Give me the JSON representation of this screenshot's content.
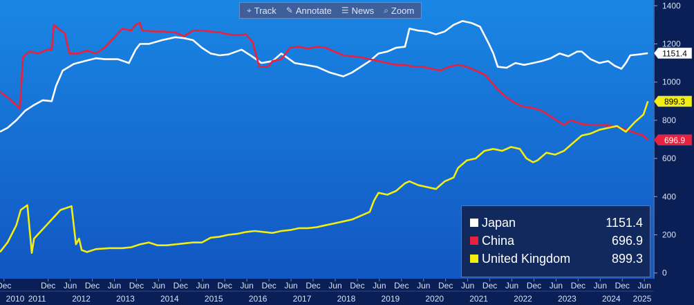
{
  "toolbar": {
    "track_label": "Track",
    "annotate_label": "Annotate",
    "news_label": "News",
    "zoom_label": "Zoom"
  },
  "colors": {
    "background": "#0b1f57",
    "plot_top": "#1a87e4",
    "plot_bottom": "#1256c2",
    "japan": "#ffffff",
    "china": "#e8213f",
    "united_kingdom": "#f2ee12"
  },
  "icons": {
    "track": "crosshair-icon",
    "annotate": "pencil-icon",
    "news": "news-icon",
    "zoom": "magnifier-icon"
  },
  "legend": [
    {
      "name": "Japan",
      "value": "1151.4"
    },
    {
      "name": "China",
      "value": "696.9"
    },
    {
      "name": "United Kingdom",
      "value": "899.3"
    }
  ],
  "chart_data": {
    "type": "line",
    "title": "",
    "xlabel": "",
    "ylabel": "",
    "xlim": [
      2010.83,
      2025.62
    ],
    "ylim": [
      -30,
      1430
    ],
    "yticks": [
      0,
      200,
      400,
      600,
      800,
      1000,
      1200,
      1400
    ],
    "ytick_labels": [
      "0",
      "200",
      "400",
      "600",
      "800",
      "1000",
      "1200",
      "1400"
    ],
    "grid": false,
    "legend_position": "bottom-right",
    "x_month_labels": [
      {
        "x": 2010.92,
        "label": "Dec"
      },
      {
        "x": 2011.92,
        "label": "Dec"
      },
      {
        "x": 2012.42,
        "label": "Jun"
      },
      {
        "x": 2012.92,
        "label": "Dec"
      },
      {
        "x": 2013.42,
        "label": "Jun"
      },
      {
        "x": 2013.92,
        "label": "Dec"
      },
      {
        "x": 2014.42,
        "label": "Jun"
      },
      {
        "x": 2014.92,
        "label": "Dec"
      },
      {
        "x": 2015.42,
        "label": "Jun"
      },
      {
        "x": 2015.92,
        "label": "Dec"
      },
      {
        "x": 2016.42,
        "label": "Jun"
      },
      {
        "x": 2016.92,
        "label": "Dec"
      },
      {
        "x": 2017.42,
        "label": "Jun"
      },
      {
        "x": 2017.92,
        "label": "Dec"
      },
      {
        "x": 2018.42,
        "label": "Jun"
      },
      {
        "x": 2018.92,
        "label": "Dec"
      },
      {
        "x": 2019.42,
        "label": "Jun"
      },
      {
        "x": 2019.92,
        "label": "Dec"
      },
      {
        "x": 2020.42,
        "label": "Jun"
      },
      {
        "x": 2020.92,
        "label": "Dec"
      },
      {
        "x": 2021.42,
        "label": "Jun"
      },
      {
        "x": 2021.92,
        "label": "Dec"
      },
      {
        "x": 2022.42,
        "label": "Jun"
      },
      {
        "x": 2022.92,
        "label": "Dec"
      },
      {
        "x": 2023.42,
        "label": "Jun"
      },
      {
        "x": 2023.92,
        "label": "Dec"
      },
      {
        "x": 2024.42,
        "label": "Jun"
      },
      {
        "x": 2024.92,
        "label": "Dec"
      },
      {
        "x": 2025.42,
        "label": "Jun"
      }
    ],
    "x_year_labels": [
      {
        "x": 2010.92,
        "label": "2010"
      },
      {
        "x": 2011.67,
        "label": "2011"
      },
      {
        "x": 2012.67,
        "label": "2012"
      },
      {
        "x": 2013.67,
        "label": "2013"
      },
      {
        "x": 2014.67,
        "label": "2014"
      },
      {
        "x": 2015.67,
        "label": "2015"
      },
      {
        "x": 2016.67,
        "label": "2016"
      },
      {
        "x": 2017.67,
        "label": "2017"
      },
      {
        "x": 2018.67,
        "label": "2018"
      },
      {
        "x": 2019.67,
        "label": "2019"
      },
      {
        "x": 2020.67,
        "label": "2020"
      },
      {
        "x": 2021.67,
        "label": "2021"
      },
      {
        "x": 2022.67,
        "label": "2022"
      },
      {
        "x": 2023.67,
        "label": "2023"
      },
      {
        "x": 2024.67,
        "label": "2024"
      },
      {
        "x": 2025.37,
        "label": "2025"
      }
    ],
    "series": [
      {
        "name": "Japan",
        "color": "#ffffff",
        "last_label": "1151.4",
        "points": [
          [
            2010.83,
            740
          ],
          [
            2011.0,
            760
          ],
          [
            2011.2,
            800
          ],
          [
            2011.4,
            850
          ],
          [
            2011.6,
            880
          ],
          [
            2011.8,
            905
          ],
          [
            2012.0,
            900
          ],
          [
            2012.1,
            980
          ],
          [
            2012.25,
            1060
          ],
          [
            2012.5,
            1095
          ],
          [
            2012.75,
            1110
          ],
          [
            2013.0,
            1125
          ],
          [
            2013.2,
            1120
          ],
          [
            2013.4,
            1120
          ],
          [
            2013.5,
            1120
          ],
          [
            2013.75,
            1100
          ],
          [
            2013.9,
            1170
          ],
          [
            2014.0,
            1200
          ],
          [
            2014.2,
            1200
          ],
          [
            2014.5,
            1220
          ],
          [
            2014.8,
            1235
          ],
          [
            2015.0,
            1230
          ],
          [
            2015.2,
            1220
          ],
          [
            2015.4,
            1180
          ],
          [
            2015.6,
            1150
          ],
          [
            2015.8,
            1140
          ],
          [
            2016.0,
            1145
          ],
          [
            2016.3,
            1170
          ],
          [
            2016.5,
            1140
          ],
          [
            2016.75,
            1100
          ],
          [
            2017.0,
            1110
          ],
          [
            2017.2,
            1150
          ],
          [
            2017.5,
            1100
          ],
          [
            2017.75,
            1090
          ],
          [
            2018.0,
            1080
          ],
          [
            2018.3,
            1050
          ],
          [
            2018.6,
            1030
          ],
          [
            2018.8,
            1050
          ],
          [
            2019.0,
            1080
          ],
          [
            2019.2,
            1110
          ],
          [
            2019.4,
            1150
          ],
          [
            2019.6,
            1160
          ],
          [
            2019.8,
            1180
          ],
          [
            2020.0,
            1185
          ],
          [
            2020.1,
            1280
          ],
          [
            2020.3,
            1270
          ],
          [
            2020.5,
            1265
          ],
          [
            2020.7,
            1250
          ],
          [
            2020.9,
            1265
          ],
          [
            2021.1,
            1300
          ],
          [
            2021.3,
            1320
          ],
          [
            2021.5,
            1310
          ],
          [
            2021.7,
            1290
          ],
          [
            2021.9,
            1200
          ],
          [
            2022.0,
            1150
          ],
          [
            2022.1,
            1080
          ],
          [
            2022.3,
            1075
          ],
          [
            2022.5,
            1100
          ],
          [
            2022.7,
            1090
          ],
          [
            2022.9,
            1100
          ],
          [
            2023.1,
            1110
          ],
          [
            2023.3,
            1125
          ],
          [
            2023.5,
            1150
          ],
          [
            2023.7,
            1135
          ],
          [
            2023.9,
            1160
          ],
          [
            2024.0,
            1160
          ],
          [
            2024.2,
            1120
          ],
          [
            2024.4,
            1100
          ],
          [
            2024.6,
            1110
          ],
          [
            2024.75,
            1085
          ],
          [
            2024.9,
            1070
          ],
          [
            2025.0,
            1100
          ],
          [
            2025.1,
            1140
          ],
          [
            2025.3,
            1145
          ],
          [
            2025.5,
            1151.4
          ]
        ]
      },
      {
        "name": "China",
        "color": "#e8213f",
        "last_label": "696.9",
        "points": [
          [
            2010.83,
            950
          ],
          [
            2011.0,
            920
          ],
          [
            2011.2,
            880
          ],
          [
            2011.28,
            860
          ],
          [
            2011.35,
            1130
          ],
          [
            2011.5,
            1160
          ],
          [
            2011.7,
            1150
          ],
          [
            2011.9,
            1170
          ],
          [
            2012.0,
            1170
          ],
          [
            2012.05,
            1300
          ],
          [
            2012.15,
            1280
          ],
          [
            2012.3,
            1255
          ],
          [
            2012.4,
            1150
          ],
          [
            2012.6,
            1150
          ],
          [
            2012.8,
            1165
          ],
          [
            2013.0,
            1150
          ],
          [
            2013.2,
            1180
          ],
          [
            2013.4,
            1230
          ],
          [
            2013.6,
            1280
          ],
          [
            2013.8,
            1270
          ],
          [
            2013.9,
            1300
          ],
          [
            2014.0,
            1310
          ],
          [
            2014.05,
            1270
          ],
          [
            2014.3,
            1265
          ],
          [
            2014.5,
            1265
          ],
          [
            2014.8,
            1260
          ],
          [
            2015.0,
            1240
          ],
          [
            2015.2,
            1270
          ],
          [
            2015.4,
            1270
          ],
          [
            2015.6,
            1265
          ],
          [
            2015.8,
            1260
          ],
          [
            2016.0,
            1250
          ],
          [
            2016.2,
            1245
          ],
          [
            2016.4,
            1250
          ],
          [
            2016.55,
            1210
          ],
          [
            2016.7,
            1080
          ],
          [
            2016.9,
            1080
          ],
          [
            2017.0,
            1110
          ],
          [
            2017.2,
            1120
          ],
          [
            2017.4,
            1180
          ],
          [
            2017.6,
            1185
          ],
          [
            2017.8,
            1175
          ],
          [
            2018.0,
            1185
          ],
          [
            2018.2,
            1180
          ],
          [
            2018.4,
            1160
          ],
          [
            2018.6,
            1140
          ],
          [
            2018.8,
            1135
          ],
          [
            2019.0,
            1130
          ],
          [
            2019.2,
            1120
          ],
          [
            2019.4,
            1110
          ],
          [
            2019.6,
            1100
          ],
          [
            2019.8,
            1090
          ],
          [
            2020.0,
            1090
          ],
          [
            2020.2,
            1080
          ],
          [
            2020.4,
            1080
          ],
          [
            2020.6,
            1070
          ],
          [
            2020.8,
            1060
          ],
          [
            2021.0,
            1080
          ],
          [
            2021.2,
            1090
          ],
          [
            2021.4,
            1080
          ],
          [
            2021.6,
            1060
          ],
          [
            2021.8,
            1040
          ],
          [
            2022.0,
            990
          ],
          [
            2022.1,
            960
          ],
          [
            2022.3,
            920
          ],
          [
            2022.5,
            890
          ],
          [
            2022.7,
            870
          ],
          [
            2022.9,
            865
          ],
          [
            2023.1,
            850
          ],
          [
            2023.3,
            820
          ],
          [
            2023.5,
            790
          ],
          [
            2023.6,
            775
          ],
          [
            2023.75,
            800
          ],
          [
            2023.9,
            790
          ],
          [
            2024.0,
            780
          ],
          [
            2024.3,
            775
          ],
          [
            2024.5,
            775
          ],
          [
            2024.7,
            770
          ],
          [
            2024.9,
            760
          ],
          [
            2025.0,
            750
          ],
          [
            2025.2,
            735
          ],
          [
            2025.4,
            720
          ],
          [
            2025.5,
            696.9
          ]
        ]
      },
      {
        "name": "United Kingdom",
        "color": "#f2ee12",
        "last_label": "899.3",
        "points": [
          [
            2010.83,
            110
          ],
          [
            2011.0,
            160
          ],
          [
            2011.2,
            250
          ],
          [
            2011.3,
            330
          ],
          [
            2011.45,
            355
          ],
          [
            2011.55,
            105
          ],
          [
            2011.6,
            180
          ],
          [
            2011.8,
            230
          ],
          [
            2012.0,
            280
          ],
          [
            2012.2,
            330
          ],
          [
            2012.45,
            350
          ],
          [
            2012.55,
            150
          ],
          [
            2012.62,
            180
          ],
          [
            2012.68,
            120
          ],
          [
            2012.8,
            110
          ],
          [
            2013.0,
            125
          ],
          [
            2013.3,
            130
          ],
          [
            2013.6,
            130
          ],
          [
            2013.8,
            135
          ],
          [
            2014.0,
            150
          ],
          [
            2014.2,
            160
          ],
          [
            2014.4,
            145
          ],
          [
            2014.6,
            145
          ],
          [
            2014.8,
            150
          ],
          [
            2015.0,
            155
          ],
          [
            2015.2,
            160
          ],
          [
            2015.4,
            160
          ],
          [
            2015.6,
            185
          ],
          [
            2015.8,
            190
          ],
          [
            2016.0,
            200
          ],
          [
            2016.2,
            205
          ],
          [
            2016.4,
            215
          ],
          [
            2016.6,
            220
          ],
          [
            2016.8,
            215
          ],
          [
            2017.0,
            210
          ],
          [
            2017.2,
            220
          ],
          [
            2017.4,
            225
          ],
          [
            2017.6,
            235
          ],
          [
            2017.8,
            235
          ],
          [
            2018.0,
            240
          ],
          [
            2018.2,
            250
          ],
          [
            2018.4,
            260
          ],
          [
            2018.6,
            270
          ],
          [
            2018.8,
            280
          ],
          [
            2019.0,
            300
          ],
          [
            2019.2,
            320
          ],
          [
            2019.3,
            380
          ],
          [
            2019.4,
            420
          ],
          [
            2019.6,
            410
          ],
          [
            2019.8,
            430
          ],
          [
            2020.0,
            470
          ],
          [
            2020.1,
            480
          ],
          [
            2020.3,
            460
          ],
          [
            2020.5,
            450
          ],
          [
            2020.7,
            440
          ],
          [
            2020.9,
            480
          ],
          [
            2021.1,
            500
          ],
          [
            2021.2,
            550
          ],
          [
            2021.4,
            590
          ],
          [
            2021.6,
            600
          ],
          [
            2021.8,
            640
          ],
          [
            2022.0,
            650
          ],
          [
            2022.2,
            640
          ],
          [
            2022.4,
            660
          ],
          [
            2022.6,
            650
          ],
          [
            2022.75,
            600
          ],
          [
            2022.9,
            580
          ],
          [
            2023.0,
            590
          ],
          [
            2023.2,
            630
          ],
          [
            2023.4,
            620
          ],
          [
            2023.6,
            640
          ],
          [
            2023.8,
            680
          ],
          [
            2024.0,
            720
          ],
          [
            2024.2,
            730
          ],
          [
            2024.4,
            750
          ],
          [
            2024.6,
            760
          ],
          [
            2024.8,
            770
          ],
          [
            2025.0,
            740
          ],
          [
            2025.2,
            790
          ],
          [
            2025.4,
            830
          ],
          [
            2025.5,
            899.3
          ]
        ]
      }
    ]
  }
}
